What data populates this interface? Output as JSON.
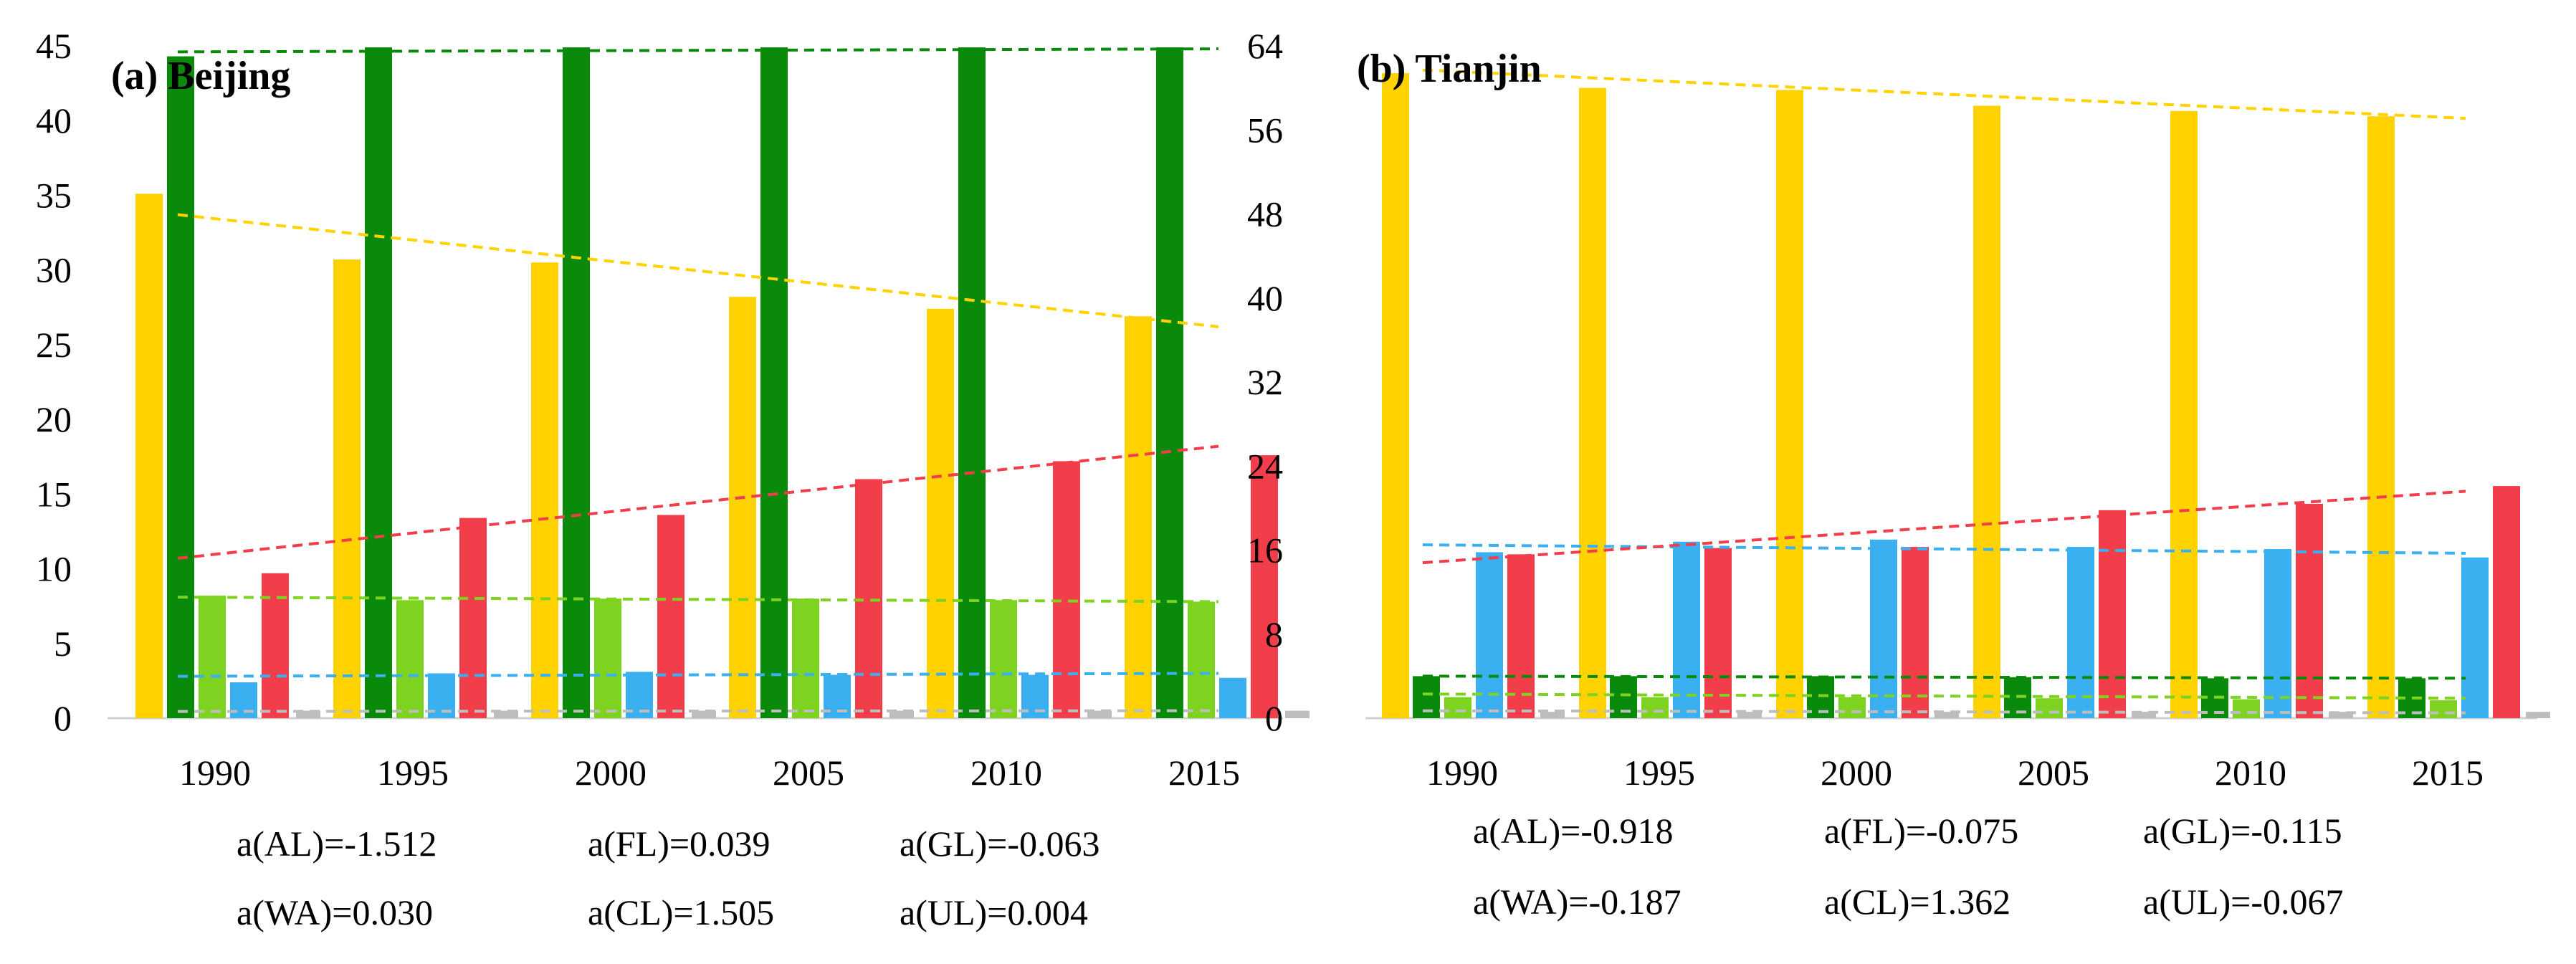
{
  "chart_data": [
    {
      "type": "bar",
      "title": "(a) Beijing",
      "categories": [
        "1990",
        "1995",
        "2000",
        "2005",
        "2010",
        "2015"
      ],
      "ylim": [
        0,
        45
      ],
      "yticks": [
        "0",
        "5",
        "10",
        "15",
        "20",
        "25",
        "30",
        "35",
        "40",
        "45"
      ],
      "series": [
        {
          "name": "AL",
          "color": "#FFD200",
          "values": [
            35.1,
            30.7,
            30.5,
            28.2,
            27.4,
            26.9
          ]
        },
        {
          "name": "FL",
          "color": "#0A8A0A",
          "values": [
            44.3,
            44.9,
            44.9,
            44.9,
            44.9,
            44.9
          ]
        },
        {
          "name": "GL",
          "color": "#7ED321",
          "values": [
            8.2,
            7.9,
            8.0,
            8.0,
            7.9,
            7.8
          ]
        },
        {
          "name": "WA",
          "color": "#3BB0F0",
          "values": [
            2.4,
            3.0,
            3.1,
            2.9,
            2.9,
            2.7
          ]
        },
        {
          "name": "CL",
          "color": "#F23D4A",
          "values": [
            9.7,
            13.4,
            13.6,
            16.0,
            17.2,
            17.6
          ]
        },
        {
          "name": "UL",
          "color": "#BDBDBD",
          "values": [
            0.5,
            0.5,
            0.5,
            0.5,
            0.5,
            0.5
          ]
        }
      ],
      "trendlines": [
        {
          "series": "AL",
          "start": 33.7,
          "end": 26.2
        },
        {
          "series": "FL",
          "start": 44.6,
          "end": 44.8
        },
        {
          "series": "GL",
          "start": 8.1,
          "end": 7.8
        },
        {
          "series": "WA",
          "start": 2.8,
          "end": 3.0
        },
        {
          "series": "CL",
          "start": 10.7,
          "end": 18.2
        },
        {
          "series": "UL",
          "start": 0.45,
          "end": 0.5
        }
      ],
      "coefficients": [
        [
          "a(AL)=-1.512",
          "a(FL)=0.039",
          "a(GL)=-0.063"
        ],
        [
          "a(WA)=0.030",
          "a(CL)=1.505",
          "a(UL)=0.004"
        ]
      ]
    },
    {
      "type": "bar",
      "title": "(b) Tianjin",
      "categories": [
        "1990",
        "1995",
        "2000",
        "2005",
        "2010",
        "2015"
      ],
      "ylim": [
        0,
        64
      ],
      "yticks": [
        "0",
        "8",
        "16",
        "24",
        "32",
        "40",
        "48",
        "56",
        "64"
      ],
      "series": [
        {
          "name": "AL",
          "color": "#FFD200",
          "values": [
            61.4,
            60.0,
            59.8,
            58.3,
            57.8,
            57.3
          ]
        },
        {
          "name": "FL",
          "color": "#0A8A0A",
          "values": [
            4.0,
            4.0,
            4.0,
            3.9,
            3.8,
            3.8
          ]
        },
        {
          "name": "GL",
          "color": "#7ED321",
          "values": [
            2.0,
            2.0,
            2.0,
            1.9,
            1.8,
            1.7
          ]
        },
        {
          "name": "WA",
          "color": "#3BB0F0",
          "values": [
            15.8,
            16.8,
            17.0,
            16.3,
            16.1,
            15.3
          ]
        },
        {
          "name": "CL",
          "color": "#F23D4A",
          "values": [
            15.6,
            16.2,
            16.3,
            19.8,
            20.4,
            22.1
          ]
        },
        {
          "name": "UL",
          "color": "#BDBDBD",
          "values": [
            0.6,
            0.6,
            0.6,
            0.6,
            0.6,
            0.6
          ]
        }
      ],
      "trendlines": [
        {
          "series": "AL",
          "start": 61.7,
          "end": 57.1
        },
        {
          "series": "FL",
          "start": 4.0,
          "end": 3.8
        },
        {
          "series": "GL",
          "start": 2.3,
          "end": 1.9
        },
        {
          "series": "WA",
          "start": 16.5,
          "end": 15.7
        },
        {
          "series": "CL",
          "start": 14.8,
          "end": 21.6
        },
        {
          "series": "UL",
          "start": 0.7,
          "end": 0.5
        }
      ],
      "coefficients": [
        [
          "a(AL)=-0.918",
          "a(FL)=-0.075",
          "a(GL)=-0.115"
        ],
        [
          "a(WA)=-0.187",
          "a(CL)=1.362",
          "a(UL)=-0.067"
        ]
      ]
    }
  ]
}
